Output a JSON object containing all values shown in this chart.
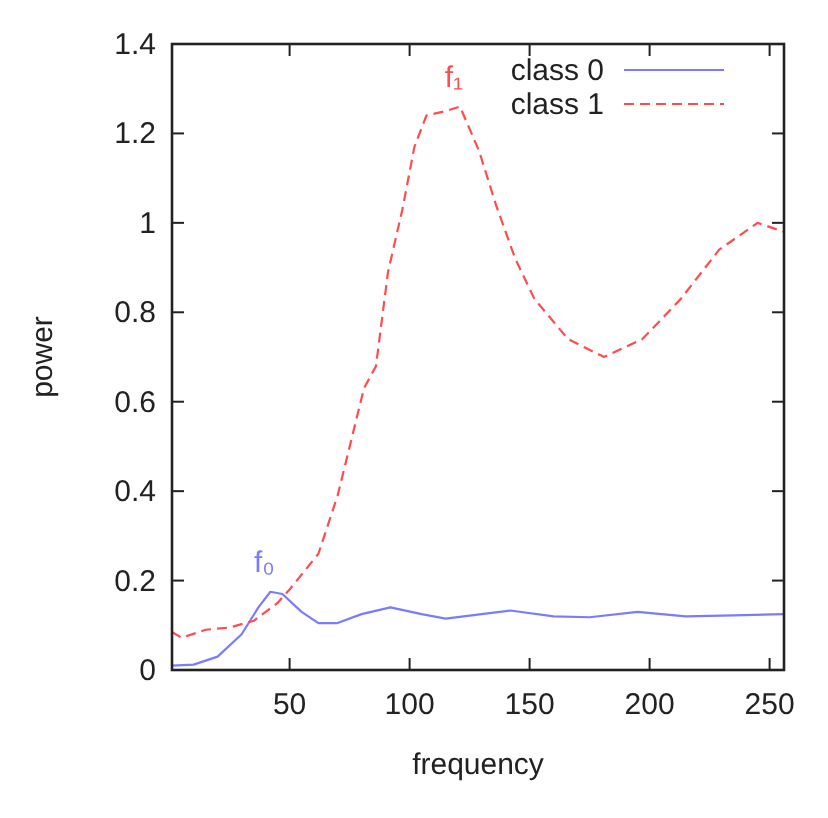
{
  "chart_data": {
    "type": "line",
    "xlabel": "frequency",
    "ylabel": "power",
    "xlim": [
      1,
      256
    ],
    "ylim": [
      0,
      1.4
    ],
    "xticks": [
      50,
      100,
      150,
      200,
      250
    ],
    "yticks": [
      0,
      0.2,
      0.4,
      0.6,
      0.8,
      1,
      1.2,
      1.4
    ],
    "legend": "top right",
    "grid": false,
    "annotations": [
      {
        "text": "f₀",
        "x": 42,
        "y": 0.175
      },
      {
        "text": "f₁",
        "x": 121,
        "y": 1.26
      }
    ],
    "series": [
      {
        "name": "class 0",
        "color": "#7b7bff",
        "line_style": "solid",
        "x": [
          1,
          10,
          20,
          30,
          37,
          42,
          47,
          55,
          62,
          70,
          80,
          92,
          105,
          115,
          130,
          142,
          160,
          175,
          195,
          215,
          235,
          256
        ],
        "values": [
          0.01,
          0.012,
          0.03,
          0.08,
          0.14,
          0.175,
          0.17,
          0.13,
          0.105,
          0.105,
          0.125,
          0.14,
          0.125,
          0.115,
          0.125,
          0.133,
          0.12,
          0.118,
          0.13,
          0.12,
          0.122,
          0.125
        ]
      },
      {
        "name": "class 1",
        "color": "#ff4d4d",
        "line_style": "dashed",
        "x": [
          1,
          5,
          15,
          25,
          35,
          45,
          50,
          62,
          70,
          81,
          86,
          91,
          97,
          102,
          107,
          115,
          121,
          129,
          136,
          144,
          152,
          166,
          181,
          197,
          213,
          229,
          245,
          256
        ],
        "values": [
          0.085,
          0.072,
          0.09,
          0.095,
          0.11,
          0.15,
          0.18,
          0.26,
          0.39,
          0.63,
          0.68,
          0.89,
          1.03,
          1.17,
          1.24,
          1.25,
          1.26,
          1.16,
          1.04,
          0.92,
          0.83,
          0.74,
          0.7,
          0.74,
          0.83,
          0.94,
          1.0,
          0.98
        ]
      }
    ]
  }
}
